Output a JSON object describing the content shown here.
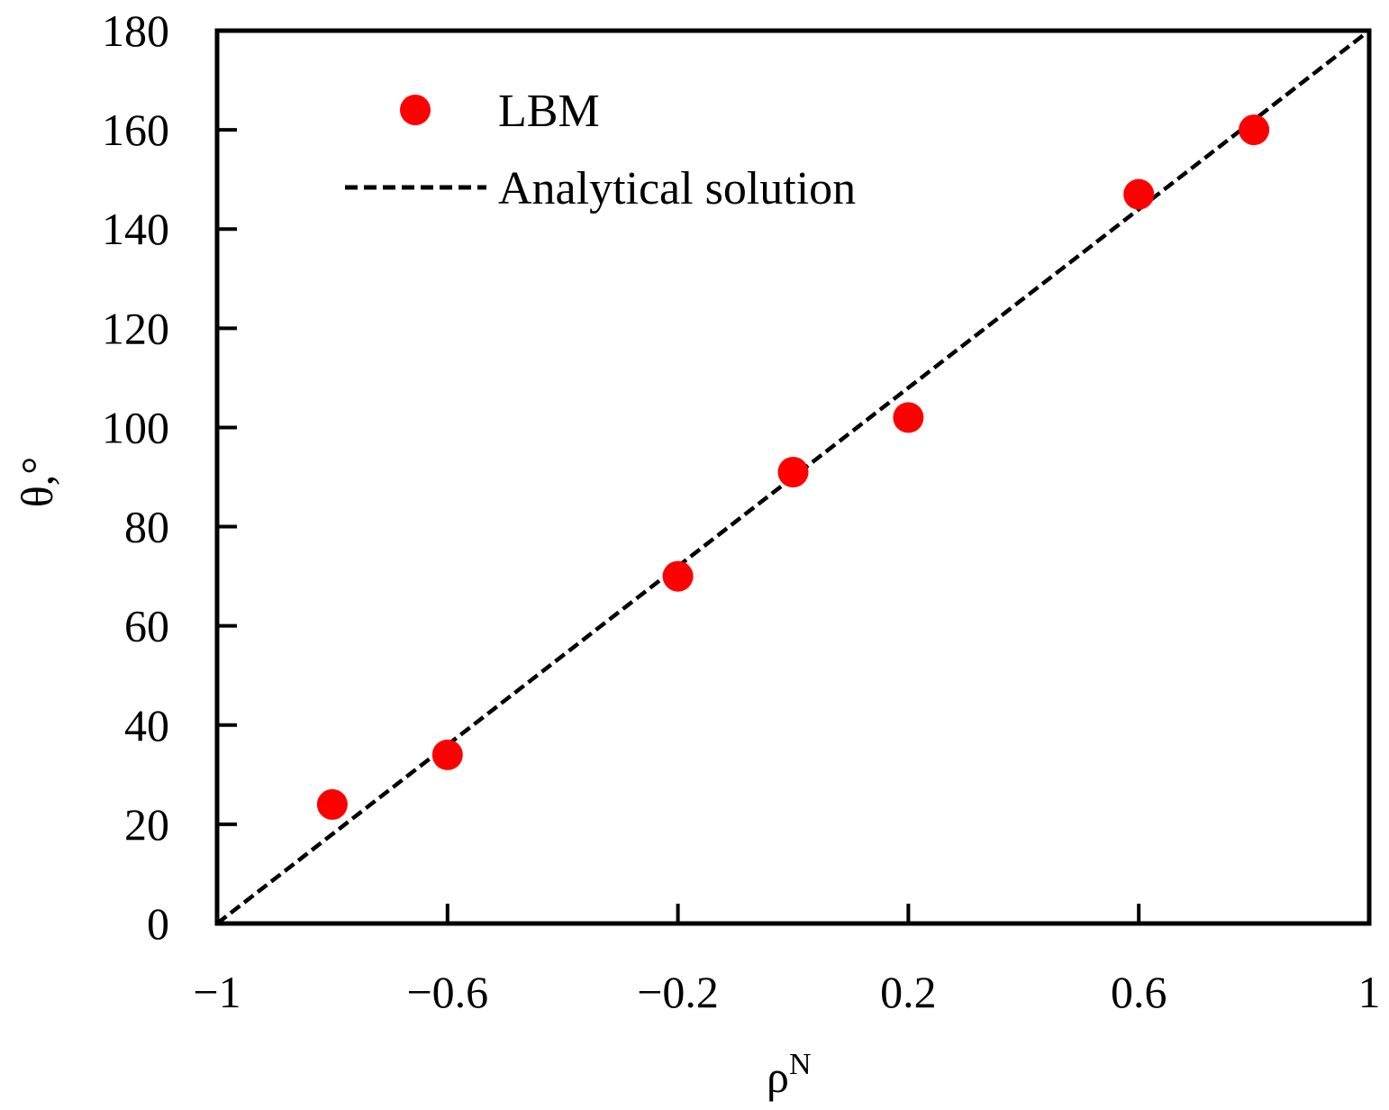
{
  "chart_data": {
    "type": "scatter",
    "title": "",
    "xlabel": "ρ",
    "xlabel_sup": "N",
    "ylabel": "θ,°",
    "xlim": [
      -1,
      1
    ],
    "ylim": [
      0,
      180
    ],
    "xticks": [
      -1,
      -0.6,
      -0.2,
      0.2,
      0.6,
      1
    ],
    "xtick_labels": [
      "−1",
      "−0.6",
      "−0.2",
      "0.2",
      "0.6",
      "1"
    ],
    "yticks": [
      0,
      20,
      40,
      60,
      80,
      100,
      120,
      140,
      160,
      180
    ],
    "ytick_labels": [
      "0",
      "20",
      "40",
      "60",
      "80",
      "100",
      "120",
      "140",
      "160",
      "180"
    ],
    "grid": false,
    "legend_position": "top-left",
    "series": [
      {
        "name": "LBM",
        "kind": "scatter",
        "color": "#ff0000",
        "x": [
          -0.8,
          -0.6,
          -0.2,
          0.0,
          0.2,
          0.6,
          0.8
        ],
        "y": [
          24,
          34,
          70,
          91,
          102,
          147,
          160
        ]
      },
      {
        "name": "Analytical solution",
        "kind": "line",
        "style": "dashed",
        "color": "#000000",
        "x": [
          -1,
          1
        ],
        "y": [
          0,
          180
        ]
      }
    ]
  }
}
